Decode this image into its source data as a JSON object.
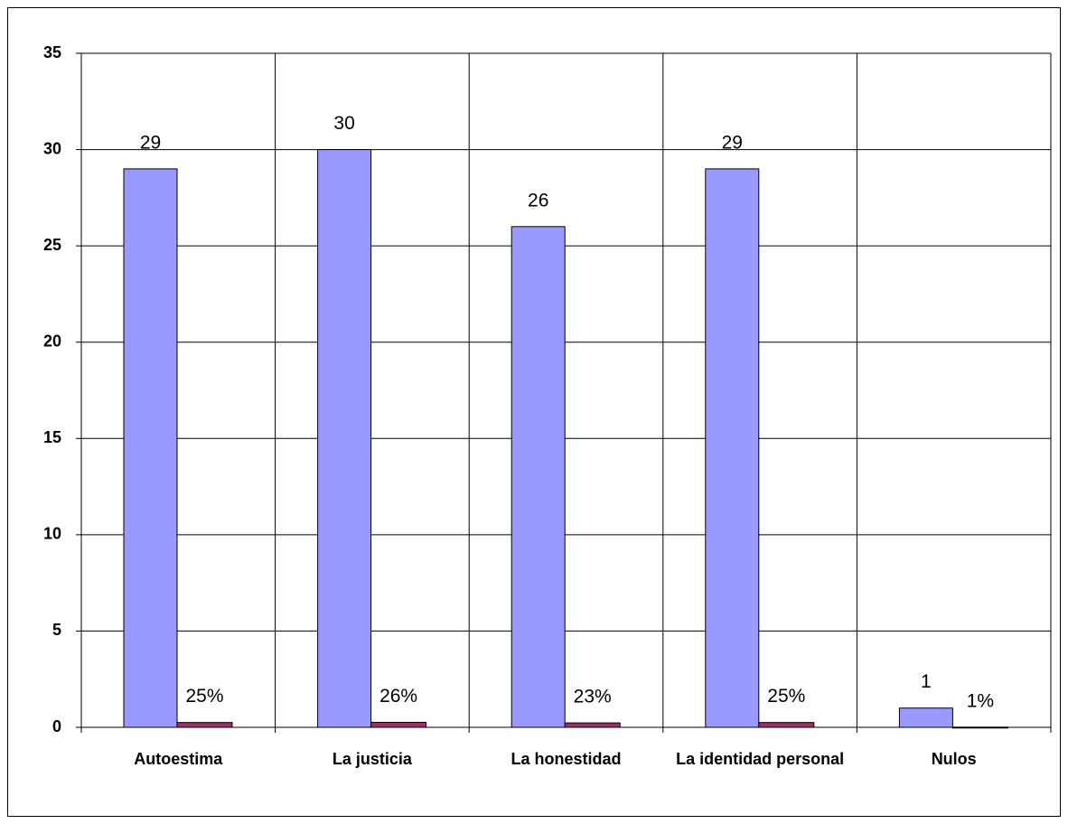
{
  "chart_data": {
    "type": "bar",
    "categories": [
      "Autoestima",
      "La justicia",
      "La honestidad",
      "La identidad personal",
      "Nulos"
    ],
    "series": [
      {
        "color": "#9999ff",
        "values": [
          29,
          30,
          26,
          29,
          1
        ]
      },
      {
        "color": "#993366",
        "values": [
          0.25,
          0.26,
          0.23,
          0.25,
          0.01
        ],
        "value_labels": [
          "25%",
          "26%",
          "23%",
          "25%",
          "1%"
        ]
      }
    ],
    "ylim": [
      0,
      35
    ],
    "yticks": [
      0,
      5,
      10,
      15,
      20,
      25,
      30,
      35
    ],
    "grid": true
  }
}
